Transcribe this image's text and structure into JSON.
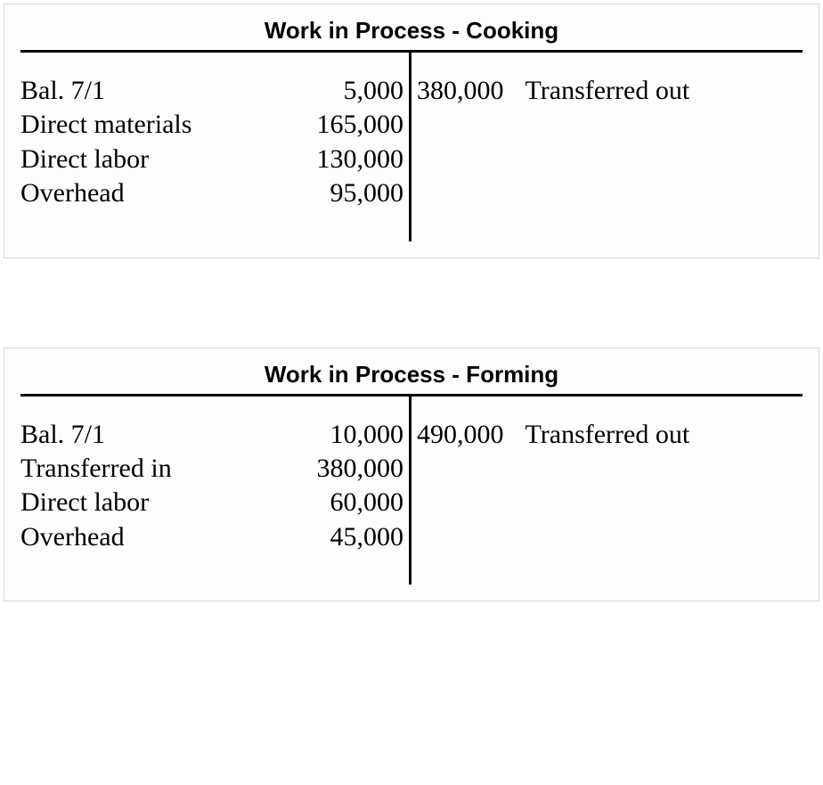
{
  "accounts": [
    {
      "title": "Work in Process - Cooking",
      "debits": [
        {
          "label": "Bal. 7/1",
          "amount": "5,000"
        },
        {
          "label": "Direct materials",
          "amount": "165,000"
        },
        {
          "label": "Direct labor",
          "amount": "130,000"
        },
        {
          "label": "Overhead",
          "amount": "95,000"
        }
      ],
      "credits": [
        {
          "label": "Transferred out",
          "amount": "380,000"
        }
      ]
    },
    {
      "title": "Work in Process - Forming",
      "debits": [
        {
          "label": "Bal. 7/1",
          "amount": "10,000"
        },
        {
          "label": "Transferred in",
          "amount": "380,000"
        },
        {
          "label": "Direct labor",
          "amount": "60,000"
        },
        {
          "label": "Overhead",
          "amount": "45,000"
        }
      ],
      "credits": [
        {
          "label": "Transferred out",
          "amount": "490,000"
        }
      ]
    }
  ],
  "style": {
    "title_font": "Verdana",
    "title_fontsize": 26,
    "body_font": "Times New Roman",
    "body_fontsize": 30,
    "border_color": "#d6d6d6",
    "rule_color": "#000000",
    "background": "#fdfdfd"
  }
}
